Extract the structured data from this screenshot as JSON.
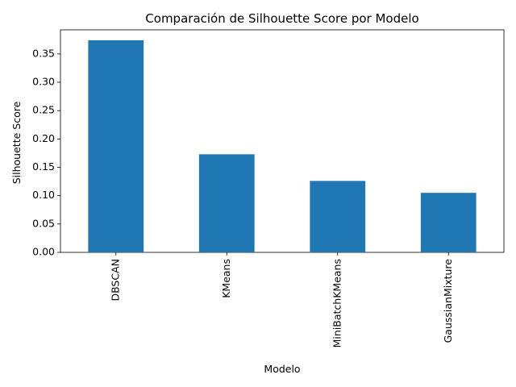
{
  "chart_data": {
    "type": "bar",
    "title": "Comparación de Silhouette Score por Modelo",
    "xlabel": "Modelo",
    "ylabel": "Silhouette Score",
    "categories": [
      "DBSCAN",
      "KMeans",
      "MiniBatchKMeans",
      "GaussianMixture"
    ],
    "values": [
      0.374,
      0.173,
      0.126,
      0.105
    ],
    "ylim": [
      0,
      0.3925
    ],
    "yticks": [
      "0.00",
      "0.05",
      "0.10",
      "0.15",
      "0.20",
      "0.25",
      "0.30",
      "0.35"
    ],
    "color": "#1f77b4",
    "grid": false,
    "legend": "none"
  }
}
